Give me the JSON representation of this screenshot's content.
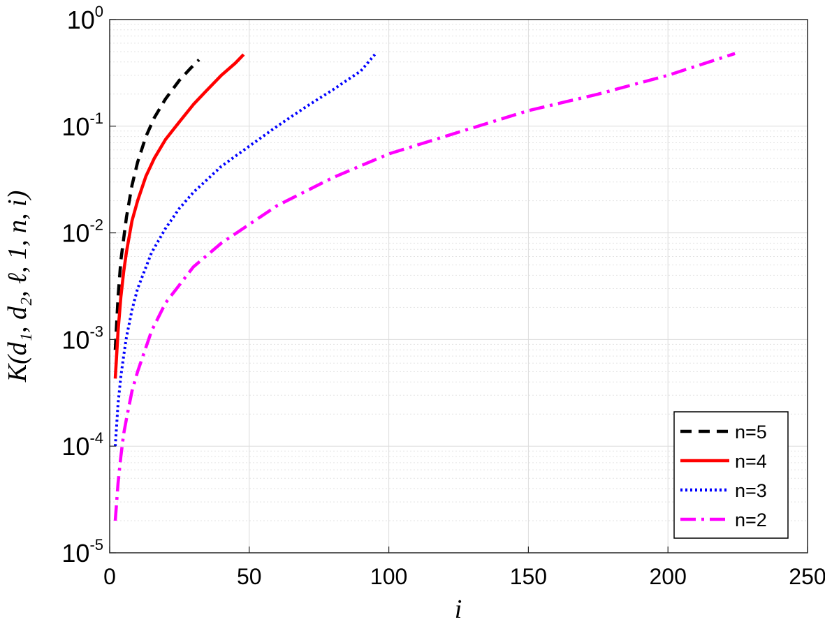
{
  "chart_data": {
    "type": "line",
    "title": "",
    "xlabel": "i",
    "ylabel": "Κ(d₁, d₂, ℓ, 1, n, i)",
    "xlim": [
      0,
      250
    ],
    "ylim": [
      1e-05,
      1
    ],
    "y_scale": "log",
    "grid": true,
    "legend_position": "bottom-right",
    "x_ticks": [
      "0",
      "50",
      "100",
      "150",
      "200",
      "250"
    ],
    "y_ticks": [
      {
        "base": "10",
        "exp": "-5"
      },
      {
        "base": "10",
        "exp": "-4"
      },
      {
        "base": "10",
        "exp": "-3"
      },
      {
        "base": "10",
        "exp": "-2"
      },
      {
        "base": "10",
        "exp": "-1"
      },
      {
        "base": "10",
        "exp": "0"
      }
    ],
    "series": [
      {
        "name": "n=5",
        "color": "#000000",
        "style": "dashed",
        "x": [
          2,
          3,
          4,
          6,
          8,
          10,
          13,
          16,
          20,
          25,
          29,
          32
        ],
        "y": [
          0.0008,
          0.0025,
          0.0055,
          0.014,
          0.028,
          0.046,
          0.08,
          0.12,
          0.18,
          0.27,
          0.35,
          0.42
        ]
      },
      {
        "name": "n=4",
        "color": "#ff0000",
        "style": "solid",
        "x": [
          2,
          3,
          4,
          5,
          6,
          8,
          10,
          13,
          16,
          20,
          25,
          30,
          35,
          40,
          45,
          48
        ],
        "y": [
          0.00043,
          0.0012,
          0.0025,
          0.0043,
          0.0066,
          0.013,
          0.02,
          0.034,
          0.05,
          0.075,
          0.11,
          0.16,
          0.22,
          0.3,
          0.39,
          0.47
        ]
      },
      {
        "name": "n=3",
        "color": "#0000ff",
        "style": "dotted",
        "x": [
          2,
          3,
          4,
          5,
          6,
          8,
          10,
          15,
          20,
          25,
          30,
          40,
          50,
          60,
          70,
          80,
          90,
          95
        ],
        "y": [
          0.0001,
          0.00025,
          0.00045,
          0.0007,
          0.00105,
          0.0019,
          0.003,
          0.0065,
          0.011,
          0.017,
          0.024,
          0.042,
          0.065,
          0.1,
          0.15,
          0.22,
          0.33,
          0.47
        ]
      },
      {
        "name": "n=2",
        "color": "#ff00ff",
        "style": "dashdot",
        "x": [
          2,
          3,
          4,
          5,
          6,
          8,
          10,
          15,
          20,
          30,
          40,
          50,
          60,
          80,
          100,
          120,
          150,
          175,
          200,
          224
        ],
        "y": [
          2e-05,
          4.5e-05,
          8e-05,
          0.00013,
          0.00018,
          0.00033,
          0.0005,
          0.0012,
          0.0022,
          0.0048,
          0.008,
          0.012,
          0.018,
          0.033,
          0.055,
          0.08,
          0.14,
          0.2,
          0.3,
          0.48
        ]
      }
    ]
  }
}
